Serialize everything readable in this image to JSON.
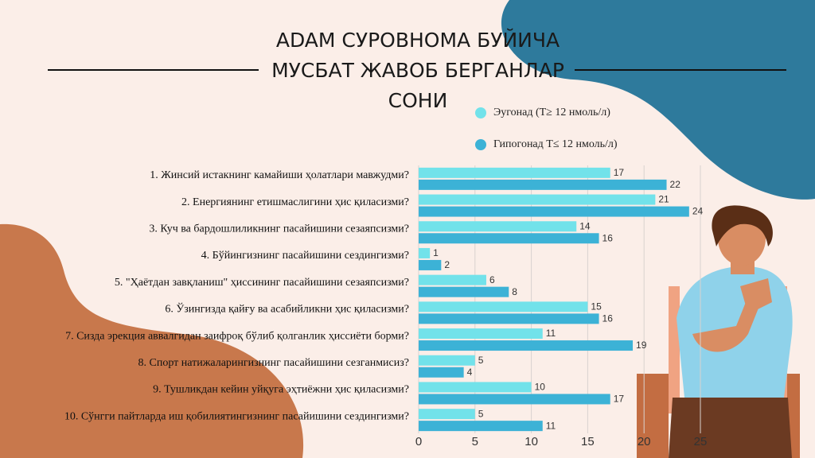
{
  "chart_data": {
    "type": "bar",
    "orientation": "horizontal",
    "title_lines": [
      "ADAM СУРОВНОМА БУЙИЧА",
      "МУСБАТ ЖАВОБ БЕРГАНЛАР",
      "СОНИ"
    ],
    "categories": [
      "1. Жинсий истакнинг камайиши ҳолатлари мавжудми?",
      "2. Енергиянинг етишмаслигини ҳис қиласизми?",
      "3. Куч ва бардошлиликнинг пасайишини сезаяпсизми?",
      "4. Бўйингизнинг пасайишини сездингизми?",
      "5. \"Ҳаётдан завқланиш\" ҳиссининг пасайишини сезаяпсизми?",
      "6. Ўзингизда қайғу ва асабийликни ҳис қиласизми?",
      "7. Сизда эрекция аввалгидан заифроқ бўлиб қолганлик ҳиссиёти борми?",
      "8. Спорт натижаларингизнинг пасайишини сезганмисиз?",
      "9. Тушликдан кейин уйқуга эҳтиёжни ҳис қиласизми?",
      "10. Сўнгги пайтларда иш қобилиятингизнинг пасайишини сездингизми?"
    ],
    "series": [
      {
        "name": "Эугонад (T≥ 12 нмоль/л)",
        "color": "#72e2ea",
        "values": [
          17,
          21,
          14,
          1,
          6,
          15,
          11,
          5,
          10,
          5
        ]
      },
      {
        "name": "Гипогонад T≤ 12 нмоль/л)",
        "color": "#3cb2d6",
        "values": [
          22,
          24,
          16,
          2,
          8,
          16,
          19,
          4,
          17,
          11
        ]
      }
    ],
    "xlim": [
      0,
      25
    ],
    "xticks": [
      0,
      5,
      10,
      15,
      20,
      25
    ],
    "grid": true
  }
}
